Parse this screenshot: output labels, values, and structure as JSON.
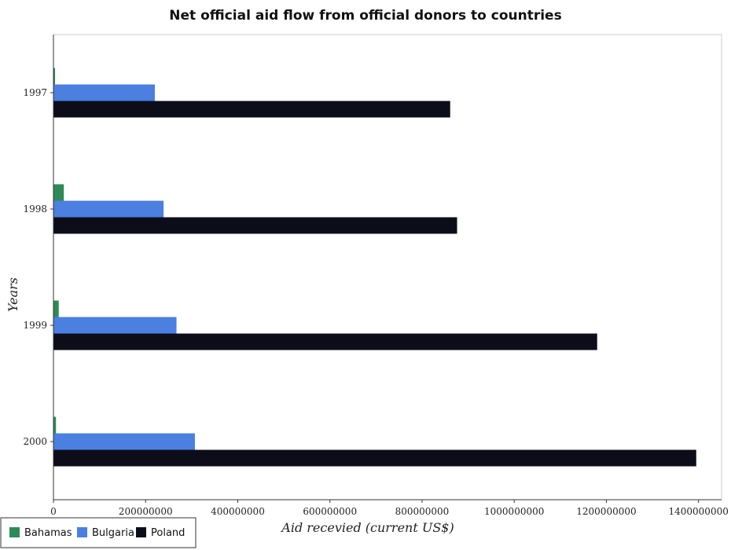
{
  "chart_data": {
    "type": "bar",
    "orientation": "horizontal",
    "title": "Net official aid flow from official donors to countries",
    "xlabel": "Aid recevied (current US$)",
    "ylabel": "Years",
    "categories": [
      "1997",
      "1998",
      "1999",
      "2000"
    ],
    "xlim": [
      0,
      1450000000
    ],
    "xticks": [
      0,
      200000000,
      400000000,
      600000000,
      800000000,
      1000000000,
      1200000000,
      1400000000
    ],
    "xtick_labels": [
      "0",
      "200000000",
      "400000000",
      "600000000",
      "800000000",
      "1000000000",
      "1200000000",
      "1400000000"
    ],
    "grid": false,
    "legend_position": "bottom-left",
    "series": [
      {
        "name": "Bahamas",
        "color": "#2e8b57",
        "values": [
          3500000,
          22500000,
          11500000,
          5500000
        ]
      },
      {
        "name": "Bulgaria",
        "color": "#4b7fe0",
        "values": [
          220000000,
          239000000,
          267000000,
          307000000
        ]
      },
      {
        "name": "Poland",
        "color": "#0d0d1a",
        "values": [
          861000000,
          876000000,
          1180000000,
          1395000000
        ]
      }
    ]
  }
}
